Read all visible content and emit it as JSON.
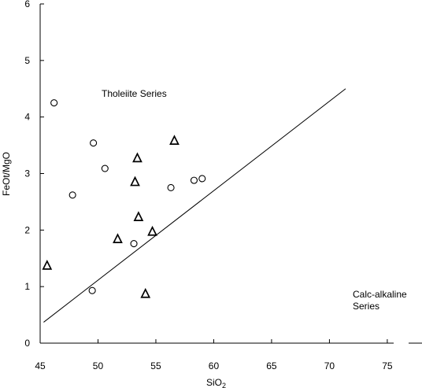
{
  "chart_data": {
    "type": "scatter",
    "title": "",
    "xlabel": "SiO",
    "xlabel_subscript": "2",
    "ylabel": "FeOt/MgO",
    "xlim": [
      45,
      78
    ],
    "ylim": [
      0,
      6
    ],
    "x_ticks": [
      "45",
      "50",
      "55",
      "60",
      "65",
      "70",
      "75"
    ],
    "y_ticks": [
      "0",
      "1",
      "2",
      "3",
      "4",
      "5",
      "6"
    ],
    "grid": false,
    "annotations": {
      "tholeiite": "Tholeiite Series",
      "calc_line1": "Calc-alkaline",
      "calc_line2": "Series"
    },
    "divider_line": {
      "x": [
        45.3,
        71.4
      ],
      "y": [
        0.37,
        4.5
      ]
    },
    "series": [
      {
        "marker": "circle",
        "points": [
          {
            "x": 46.2,
            "y": 4.25
          },
          {
            "x": 47.8,
            "y": 2.62
          },
          {
            "x": 49.6,
            "y": 3.54
          },
          {
            "x": 50.6,
            "y": 3.09
          },
          {
            "x": 49.5,
            "y": 0.93
          },
          {
            "x": 53.1,
            "y": 1.76
          },
          {
            "x": 56.3,
            "y": 2.75
          },
          {
            "x": 58.3,
            "y": 2.88
          },
          {
            "x": 59.0,
            "y": 2.91
          }
        ]
      },
      {
        "marker": "triangle",
        "points": [
          {
            "x": 45.6,
            "y": 1.38
          },
          {
            "x": 51.7,
            "y": 1.85
          },
          {
            "x": 53.2,
            "y": 2.86
          },
          {
            "x": 53.4,
            "y": 3.28
          },
          {
            "x": 53.5,
            "y": 2.24
          },
          {
            "x": 54.1,
            "y": 0.88
          },
          {
            "x": 54.7,
            "y": 1.98
          },
          {
            "x": 56.6,
            "y": 3.59
          }
        ]
      }
    ]
  }
}
